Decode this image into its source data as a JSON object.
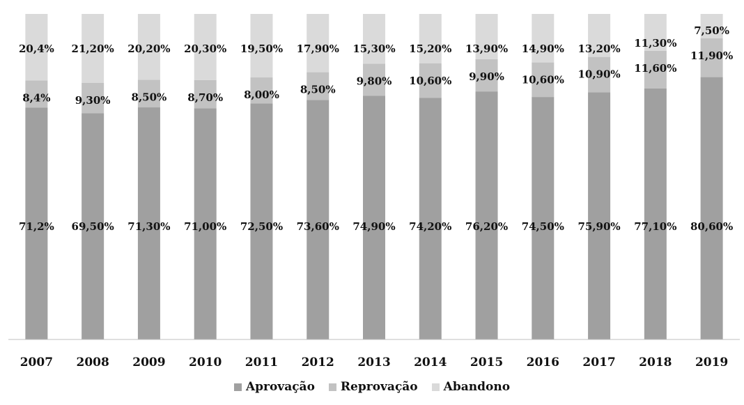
{
  "chart_data": {
    "type": "bar",
    "stacked": true,
    "categories": [
      "2007",
      "2008",
      "2009",
      "2010",
      "2011",
      "2012",
      "2013",
      "2014",
      "2015",
      "2016",
      "2017",
      "2018",
      "2019"
    ],
    "ylim": [
      0,
      100
    ],
    "grid": false,
    "legend_position": "bottom",
    "series": [
      {
        "name": "Aprovação",
        "color": "#a0a0a0",
        "values": [
          71.2,
          69.5,
          71.3,
          71.0,
          72.5,
          73.6,
          74.9,
          74.2,
          76.2,
          74.5,
          75.9,
          77.1,
          80.6
        ],
        "labels": [
          "71,2%",
          "69,50%",
          "71,30%",
          "71,00%",
          "72,50%",
          "73,60%",
          "74,90%",
          "74,20%",
          "76,20%",
          "74,50%",
          "75,90%",
          "77,10%",
          "80,60%"
        ]
      },
      {
        "name": "Reprovação",
        "color": "#c2c2c2",
        "values": [
          8.4,
          9.3,
          8.5,
          8.7,
          8.0,
          8.5,
          9.8,
          10.6,
          9.9,
          10.6,
          10.9,
          11.6,
          11.9
        ],
        "labels": [
          "8,4%",
          "9,30%",
          "8,50%",
          "8,70%",
          "8,00%",
          "8,50%",
          "9,80%",
          "10,60%",
          "9,90%",
          "10,60%",
          "10,90%",
          "11,60%",
          "11,90%"
        ]
      },
      {
        "name": "Abandono",
        "color": "#dadada",
        "values": [
          20.4,
          21.2,
          20.2,
          20.3,
          19.5,
          17.9,
          15.3,
          15.2,
          13.9,
          14.9,
          13.2,
          11.3,
          7.5
        ],
        "labels": [
          "20,4%",
          "21,20%",
          "20,20%",
          "20,30%",
          "19,50%",
          "17,90%",
          "15,30%",
          "15,20%",
          "13,90%",
          "14,90%",
          "13,20%",
          "11,30%",
          "7,50%"
        ]
      }
    ]
  }
}
